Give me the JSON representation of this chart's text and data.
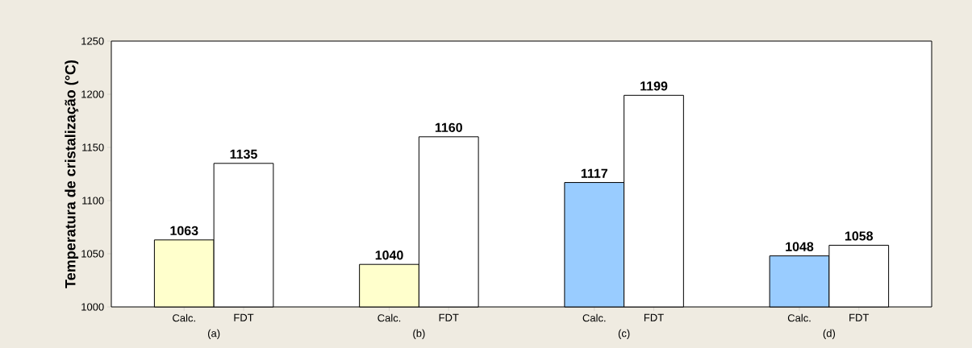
{
  "chart_data": {
    "type": "bar",
    "ylabel": "Temperatura de cristalização (°C)",
    "categories": [
      "(a)",
      "(b)",
      "(c)",
      "(d)"
    ],
    "series": [
      {
        "name": "Calc.",
        "colors": [
          "#ffffcc",
          "#ffffcc",
          "#99ccff",
          "#99ccff"
        ],
        "values": [
          1063,
          1040,
          1117,
          1048
        ]
      },
      {
        "name": "FDT",
        "color": "#ffffff",
        "values": [
          1135,
          1160,
          1199,
          1058
        ]
      }
    ],
    "ylim": [
      1000,
      1250
    ],
    "yticks": [
      1000,
      1050,
      1100,
      1150,
      1200,
      1250
    ],
    "data_labels": true
  }
}
